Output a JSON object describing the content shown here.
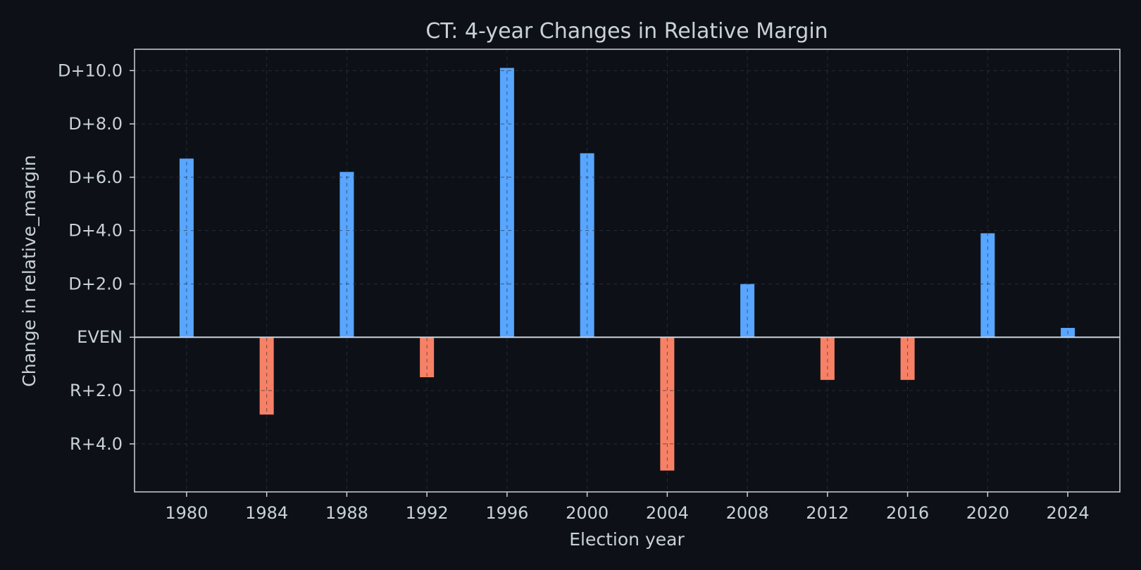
{
  "chart_data": {
    "type": "bar",
    "title": "CT: 4-year Changes in Relative Margin",
    "xlabel": "Election year",
    "ylabel": "Change in relative_margin",
    "x": [
      1980,
      1984,
      1988,
      1992,
      1996,
      2000,
      2004,
      2008,
      2012,
      2016,
      2020,
      2024
    ],
    "values": [
      6.7,
      -2.9,
      6.2,
      -1.5,
      10.1,
      6.9,
      -5.0,
      2.0,
      -1.6,
      -1.6,
      3.9,
      0.35
    ],
    "xlim": [
      1977.4,
      2026.6
    ],
    "ylim": [
      -5.8,
      10.8
    ],
    "yticks": [
      {
        "value": 10,
        "label": "D+10.0"
      },
      {
        "value": 8,
        "label": "D+8.0"
      },
      {
        "value": 6,
        "label": "D+6.0"
      },
      {
        "value": 4,
        "label": "D+4.0"
      },
      {
        "value": 2,
        "label": "D+2.0"
      },
      {
        "value": 0,
        "label": "EVEN"
      },
      {
        "value": -2,
        "label": "R+2.0"
      },
      {
        "value": -4,
        "label": "R+4.0"
      }
    ],
    "xticks": [
      "1980",
      "1984",
      "1988",
      "1992",
      "1996",
      "2000",
      "2004",
      "2008",
      "2012",
      "2016",
      "2020",
      "2024"
    ],
    "grid": true,
    "colors": {
      "positive": "#58a6ff",
      "negative": "#f78166",
      "background": "#0d1117",
      "text": "#c9d1d9",
      "axis": "#c9d1d9",
      "zero_line": "#c9d1d9",
      "grid": "#30363d"
    }
  }
}
